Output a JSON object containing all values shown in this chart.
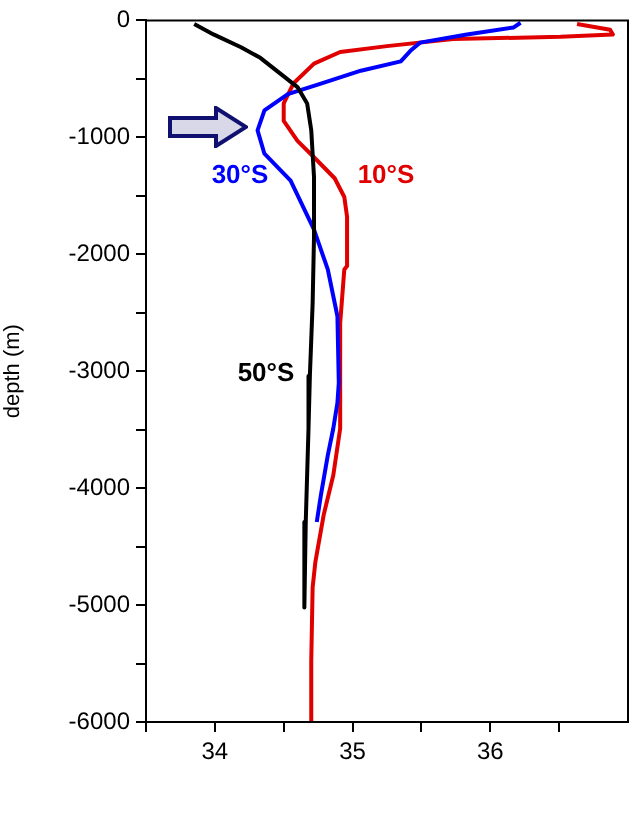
{
  "chart_data": {
    "type": "line",
    "ylabel": "depth (m)",
    "xlim": [
      33.5,
      37
    ],
    "ylim": [
      -6000,
      0
    ],
    "xticks": [
      {
        "value": 33.5,
        "label": null
      },
      34,
      {
        "value": 34.5,
        "label": null
      },
      35,
      {
        "value": 35.5,
        "label": null
      },
      36,
      {
        "value": 36.5,
        "label": null
      }
    ],
    "yticks": [
      -6000,
      {
        "value": -5500,
        "label": null
      },
      -5000,
      {
        "value": -4500,
        "label": null
      },
      -4000,
      {
        "value": -3500,
        "label": null
      },
      -3000,
      {
        "value": -2500,
        "label": null
      },
      -2000,
      {
        "value": -1500,
        "label": null
      },
      -1000,
      {
        "value": -500,
        "label": null
      },
      0
    ],
    "grid": false,
    "legend": false,
    "marker": "none",
    "line_style": "solid",
    "series": [
      {
        "name": "50°S",
        "color": "#000000",
        "x": [
          33.85,
          33.99,
          34.19,
          34.33,
          34.48,
          34.6,
          34.67,
          34.7,
          34.72,
          34.72,
          34.71,
          34.69,
          34.68,
          34.66,
          34.65
        ],
        "values": [
          -30,
          -120,
          -230,
          -320,
          -460,
          -570,
          -710,
          -940,
          -1340,
          -1850,
          -2420,
          -3040,
          -3490,
          -4290,
          -5020
        ]
      },
      {
        "name": "30°S",
        "color": "#0000ff",
        "x": [
          36.22,
          36.17,
          35.83,
          35.49,
          35.42,
          35.35,
          35.06,
          34.77,
          34.53,
          34.36,
          34.31,
          34.36,
          34.55,
          34.72,
          34.82,
          34.89,
          34.9,
          34.89,
          34.86,
          34.82,
          34.77,
          34.74
        ],
        "values": [
          -20,
          -60,
          -120,
          -190,
          -260,
          -350,
          -430,
          -540,
          -630,
          -770,
          -940,
          -1140,
          -1370,
          -1790,
          -2130,
          -2530,
          -3100,
          -3270,
          -3490,
          -3720,
          -4060,
          -4290
        ]
      },
      {
        "name": "10°S",
        "color": "#e00000",
        "x": [
          36.63,
          36.87,
          36.89,
          36.51,
          35.73,
          35.25,
          34.91,
          34.72,
          34.57,
          34.5,
          34.5,
          34.6,
          34.72,
          34.87,
          34.94,
          34.96,
          34.96,
          34.94,
          34.91,
          34.91,
          34.86,
          34.79,
          34.73,
          34.71,
          34.7,
          34.7
        ],
        "values": [
          -30,
          -80,
          -120,
          -140,
          -160,
          -220,
          -270,
          -370,
          -540,
          -710,
          -860,
          -1030,
          -1170,
          -1350,
          -1510,
          -1680,
          -2100,
          -2130,
          -2590,
          -3490,
          -3890,
          -4230,
          -4630,
          -4850,
          -5480,
          -6000
        ]
      }
    ]
  }
}
